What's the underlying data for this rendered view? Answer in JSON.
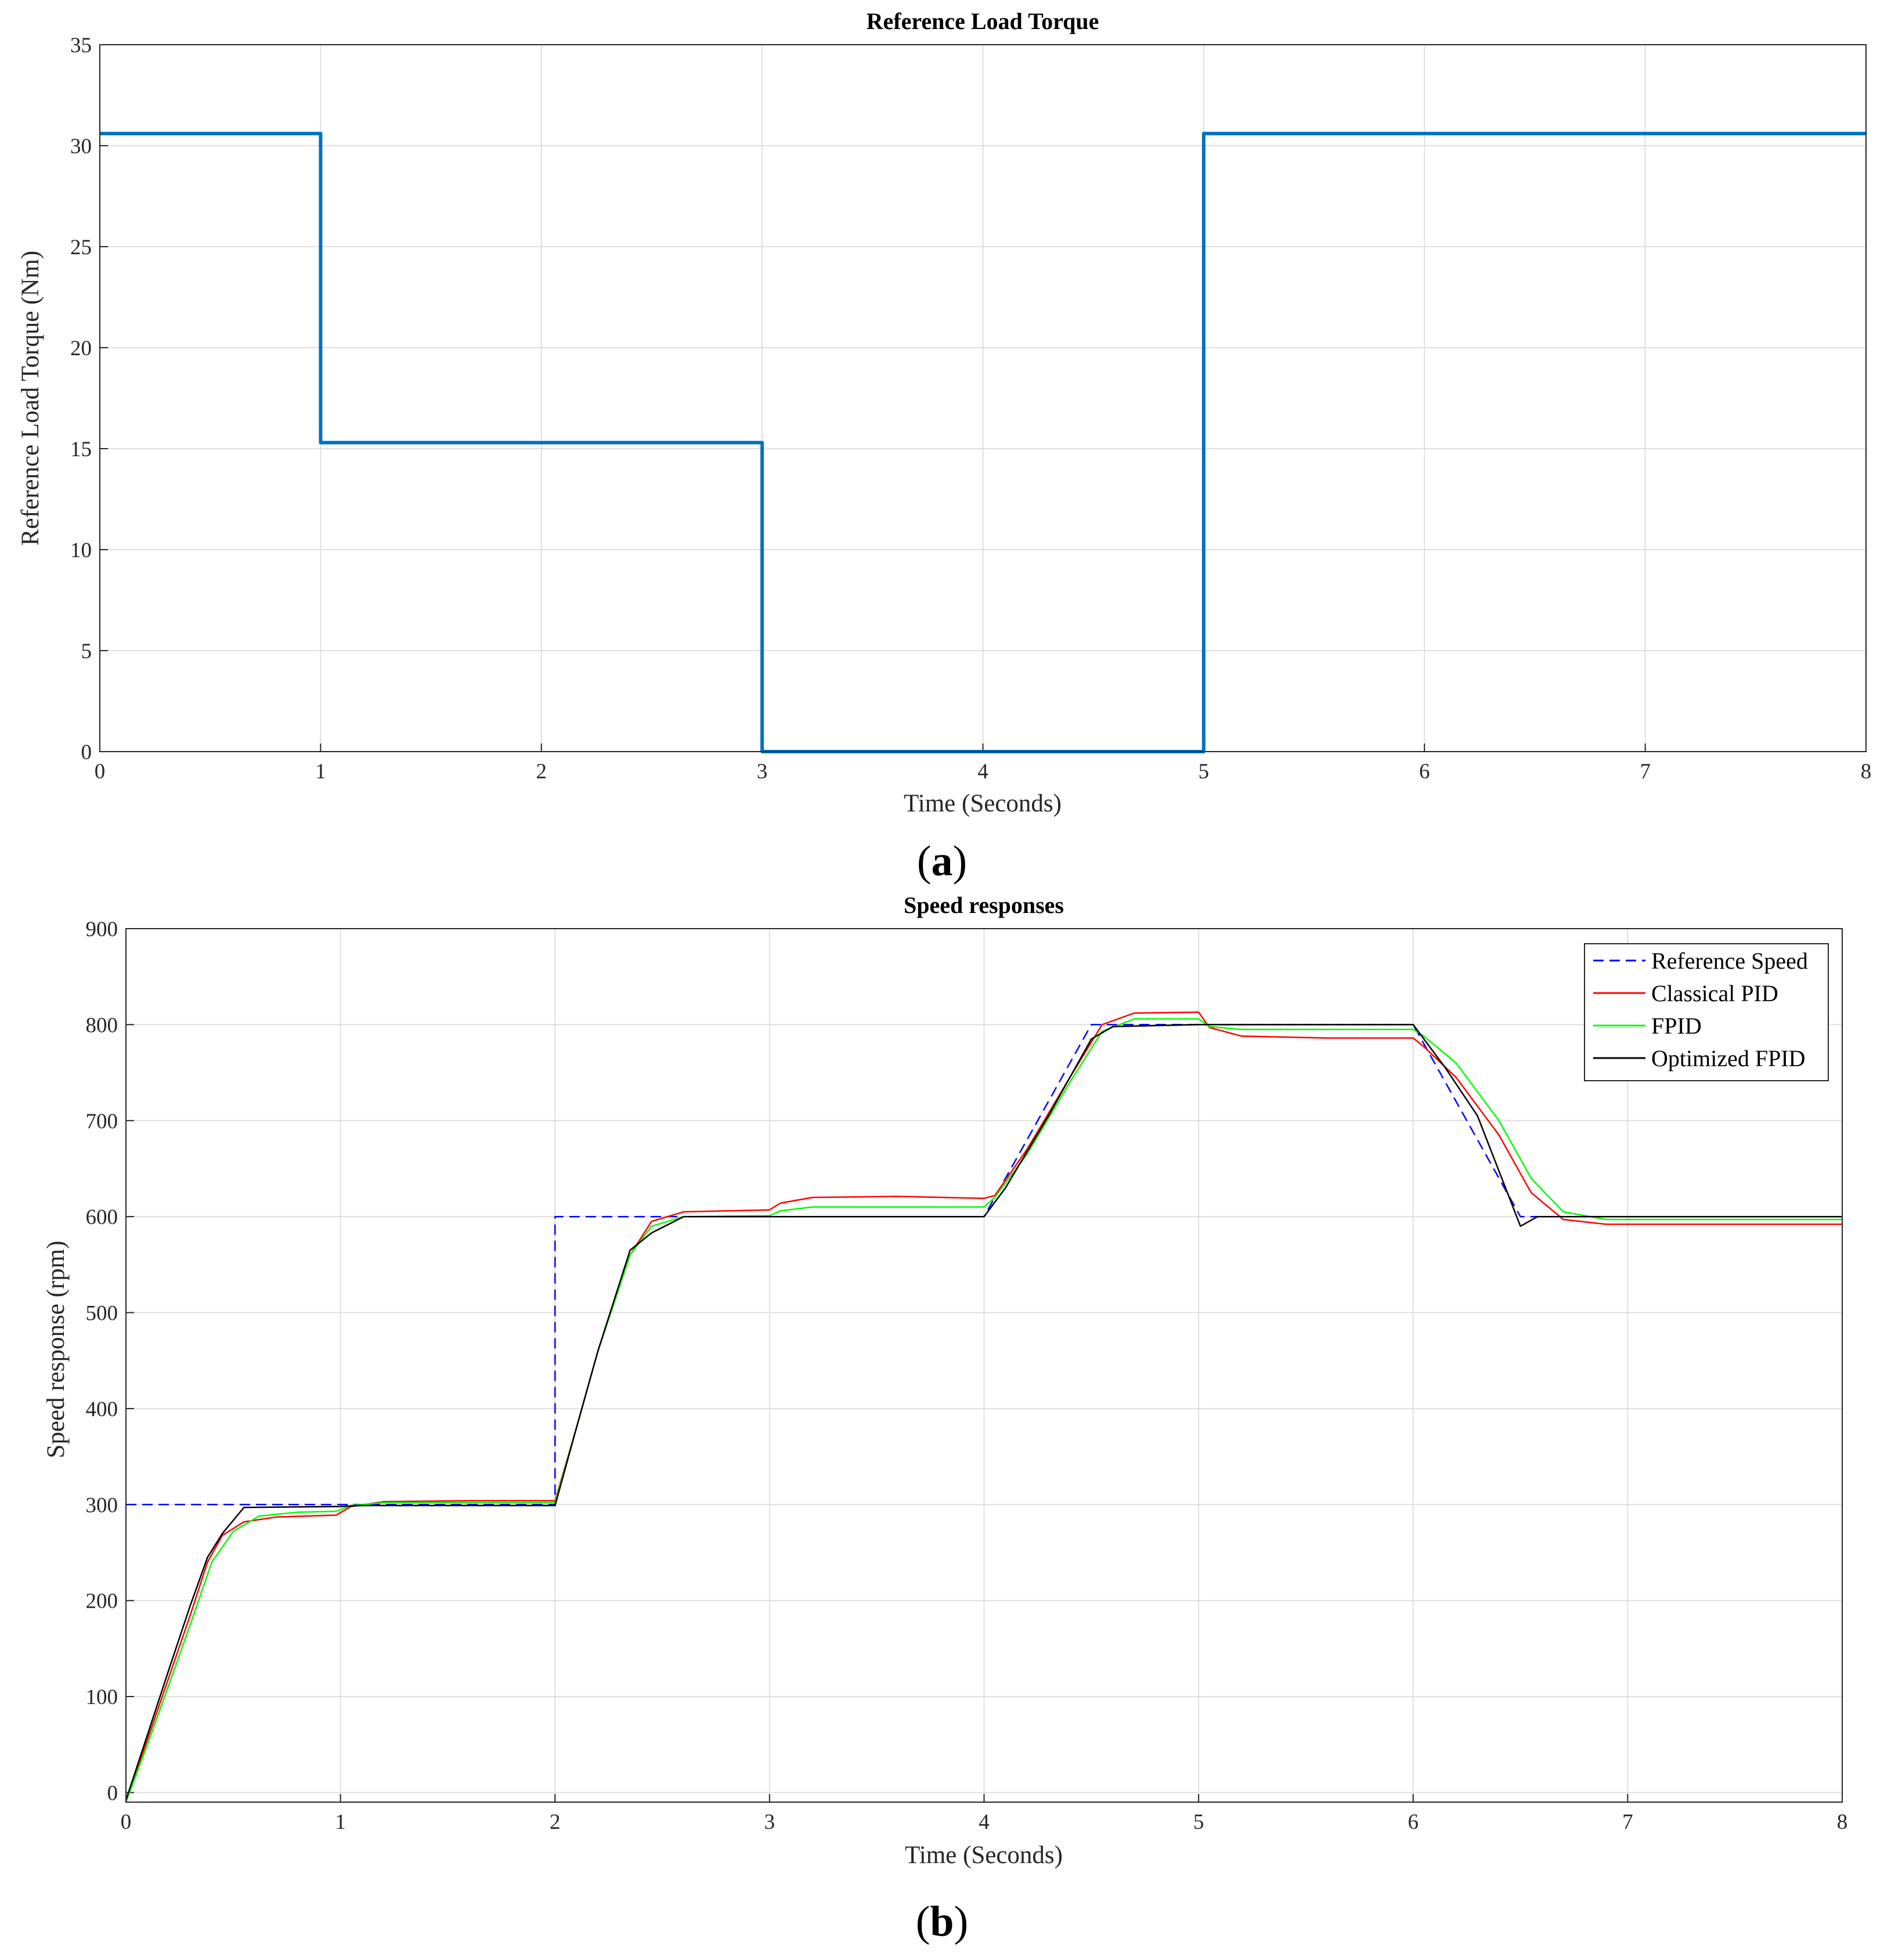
{
  "chart_data": [
    {
      "type": "line",
      "title": "Reference Load Torque",
      "xlabel": "Time (Seconds)",
      "ylabel": "Reference Load Torque (Nm)",
      "xlim": [
        0,
        8
      ],
      "ylim": [
        0,
        35
      ],
      "xticks": [
        "0",
        "1",
        "2",
        "3",
        "4",
        "5",
        "6",
        "7",
        "8"
      ],
      "yticks": [
        "0",
        "5",
        "10",
        "15",
        "20",
        "25",
        "30",
        "35"
      ],
      "grid": true,
      "caption_letter": "a",
      "series": [
        {
          "color": "#0072BD",
          "points": [
            [
              0,
              30.6
            ],
            [
              1,
              30.6
            ],
            [
              1,
              15.3
            ],
            [
              3,
              15.3
            ],
            [
              3,
              0
            ],
            [
              5,
              0
            ],
            [
              5,
              30.6
            ],
            [
              8,
              30.6
            ]
          ]
        }
      ]
    },
    {
      "type": "line",
      "title": "Speed responses",
      "xlabel": "Time (Seconds)",
      "ylabel": "Speed response (rpm)",
      "xlim": [
        0,
        8
      ],
      "ylim": [
        -10,
        900
      ],
      "xticks": [
        "0",
        "1",
        "2",
        "3",
        "4",
        "5",
        "6",
        "7",
        "8"
      ],
      "yticks": [
        "0",
        "100",
        "200",
        "300",
        "400",
        "500",
        "600",
        "700",
        "800",
        "900"
      ],
      "grid": true,
      "legend_position": "top-right",
      "caption_letter": "b",
      "series": [
        {
          "name": "Reference Speed",
          "color": "#0000FF",
          "dashed": true,
          "points": [
            [
              0,
              300
            ],
            [
              2,
              300
            ],
            [
              2,
              600
            ],
            [
              4,
              600
            ],
            [
              4.5,
              800
            ],
            [
              6,
              800
            ],
            [
              6.5,
              600
            ],
            [
              8,
              600
            ]
          ]
        },
        {
          "name": "Classical PID",
          "color": "#FF0000",
          "dashed": false,
          "points": [
            [
              0,
              -8
            ],
            [
              0.1,
              55
            ],
            [
              0.2,
              120
            ],
            [
              0.3,
              185
            ],
            [
              0.38,
              240
            ],
            [
              0.45,
              268
            ],
            [
              0.55,
              282
            ],
            [
              0.7,
              287
            ],
            [
              0.98,
              289
            ],
            [
              1.05,
              298
            ],
            [
              1.2,
              303
            ],
            [
              1.6,
              304
            ],
            [
              2.0,
              304
            ],
            [
              2.1,
              380
            ],
            [
              2.2,
              460
            ],
            [
              2.35,
              560
            ],
            [
              2.45,
              595
            ],
            [
              2.6,
              605
            ],
            [
              3.0,
              607
            ],
            [
              3.05,
              614
            ],
            [
              3.2,
              620
            ],
            [
              3.6,
              621
            ],
            [
              4.0,
              619
            ],
            [
              4.05,
              622
            ],
            [
              4.2,
              670
            ],
            [
              4.4,
              745
            ],
            [
              4.55,
              800
            ],
            [
              4.7,
              812
            ],
            [
              5.0,
              813
            ],
            [
              5.05,
              797
            ],
            [
              5.2,
              788
            ],
            [
              5.6,
              786
            ],
            [
              6.0,
              786
            ],
            [
              6.05,
              777
            ],
            [
              6.2,
              745
            ],
            [
              6.4,
              685
            ],
            [
              6.55,
              625
            ],
            [
              6.7,
              597
            ],
            [
              6.9,
              592
            ],
            [
              7.4,
              592
            ],
            [
              8.0,
              592
            ]
          ]
        },
        {
          "name": "FPID",
          "color": "#00FF00",
          "dashed": false,
          "points": [
            [
              0,
              -10
            ],
            [
              0.1,
              50
            ],
            [
              0.2,
              112
            ],
            [
              0.3,
              175
            ],
            [
              0.4,
              240
            ],
            [
              0.5,
              272
            ],
            [
              0.62,
              288
            ],
            [
              0.8,
              292
            ],
            [
              0.98,
              293
            ],
            [
              1.05,
              299
            ],
            [
              1.2,
              302
            ],
            [
              1.6,
              302
            ],
            [
              2.0,
              302
            ],
            [
              2.1,
              380
            ],
            [
              2.2,
              460
            ],
            [
              2.35,
              560
            ],
            [
              2.45,
              590
            ],
            [
              2.6,
              600
            ],
            [
              3.0,
              601
            ],
            [
              3.05,
              606
            ],
            [
              3.2,
              610
            ],
            [
              4.0,
              610
            ],
            [
              4.05,
              620
            ],
            [
              4.2,
              665
            ],
            [
              4.4,
              740
            ],
            [
              4.55,
              793
            ],
            [
              4.7,
              806
            ],
            [
              5.0,
              806
            ],
            [
              5.05,
              798
            ],
            [
              5.2,
              795
            ],
            [
              6.0,
              795
            ],
            [
              6.05,
              788
            ],
            [
              6.2,
              760
            ],
            [
              6.4,
              700
            ],
            [
              6.55,
              640
            ],
            [
              6.7,
              605
            ],
            [
              6.9,
              597
            ],
            [
              7.4,
              597
            ],
            [
              8.0,
              597
            ]
          ]
        },
        {
          "name": "Optimized FPID",
          "color": "#000000",
          "dashed": false,
          "points": [
            [
              0,
              -8
            ],
            [
              0.1,
              60
            ],
            [
              0.2,
              128
            ],
            [
              0.3,
              195
            ],
            [
              0.38,
              245
            ],
            [
              0.45,
              270
            ],
            [
              0.55,
              297
            ],
            [
              1.0,
              298
            ],
            [
              1.1,
              299
            ],
            [
              2.0,
              299
            ],
            [
              2.1,
              380
            ],
            [
              2.2,
              460
            ],
            [
              2.35,
              565
            ],
            [
              2.45,
              583
            ],
            [
              2.6,
              600
            ],
            [
              4.0,
              600
            ],
            [
              4.1,
              630
            ],
            [
              4.3,
              705
            ],
            [
              4.5,
              785
            ],
            [
              4.6,
              798
            ],
            [
              5.0,
              800
            ],
            [
              6.0,
              800
            ],
            [
              6.15,
              755
            ],
            [
              6.3,
              705
            ],
            [
              6.5,
              590
            ],
            [
              6.58,
              600
            ],
            [
              8.0,
              600
            ]
          ]
        }
      ]
    }
  ]
}
